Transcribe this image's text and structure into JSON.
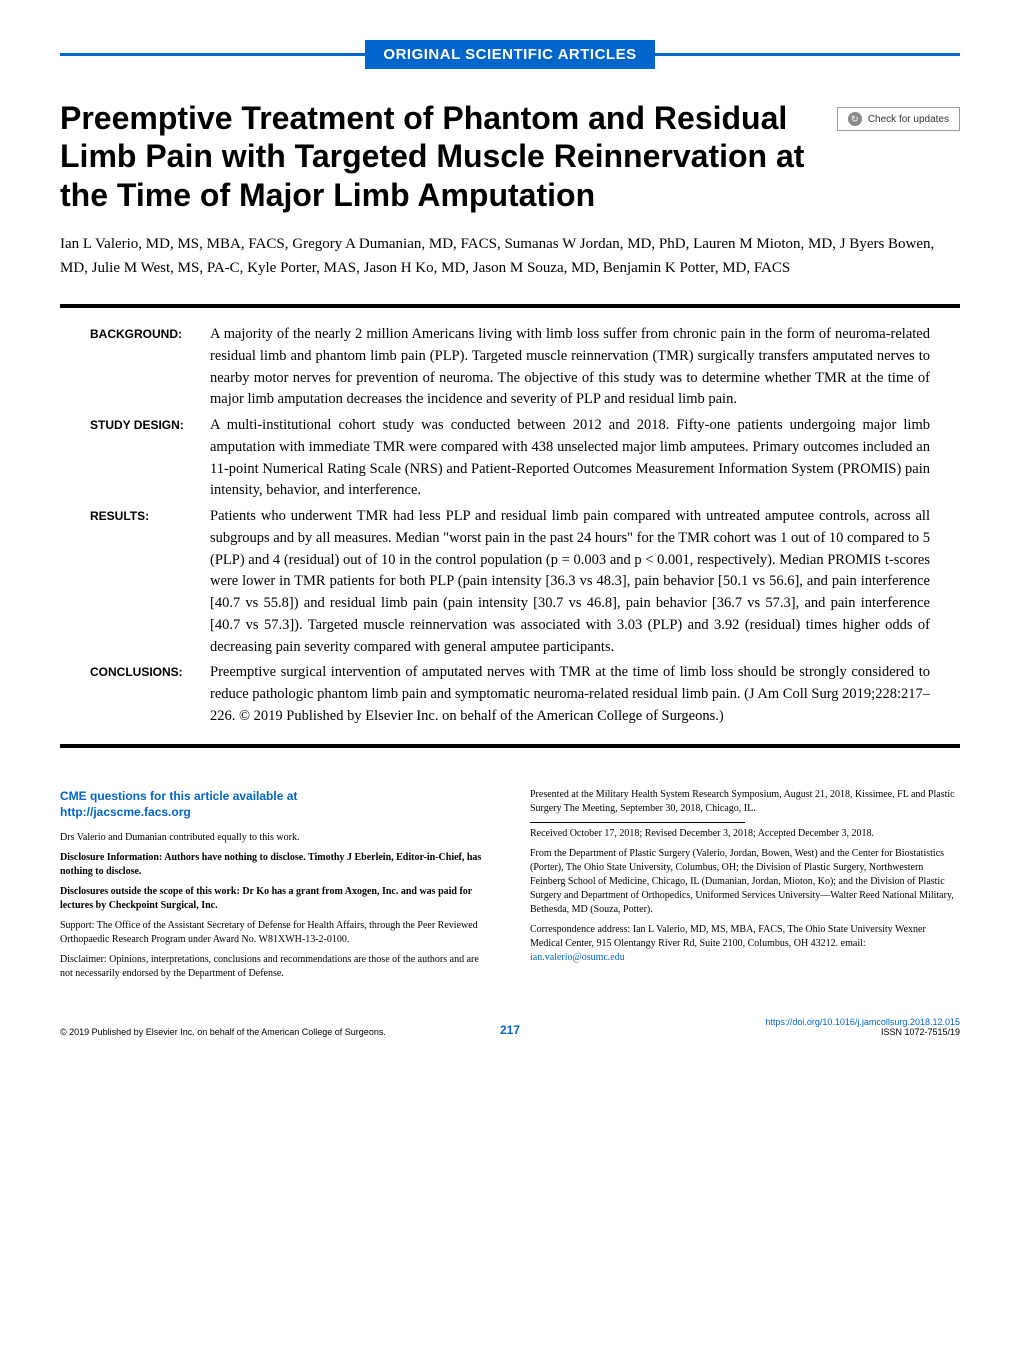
{
  "header": {
    "badge_text": "ORIGINAL SCIENTIFIC ARTICLES",
    "badge_bg": "#0066cc",
    "badge_color": "#ffffff",
    "divider_color": "#0066cc"
  },
  "check_updates": {
    "label": "Check for updates"
  },
  "title": "Preemptive Treatment of Phantom and Residual Limb Pain with Targeted Muscle Reinnervation at the Time of Major Limb Amputation",
  "authors_line": "Ian L Valerio, MD, MS, MBA, FACS, Gregory A Dumanian, MD, FACS, Sumanas W Jordan, MD, PhD, Lauren M Mioton, MD, J Byers Bowen, MD, Julie M West, MS, PA-C, Kyle Porter, MAS, Jason H Ko, MD, Jason M Souza, MD, Benjamin K Potter, MD, FACS",
  "abstract": {
    "sections": [
      {
        "label": "BACKGROUND:",
        "text": "A majority of the nearly 2 million Americans living with limb loss suffer from chronic pain in the form of neuroma-related residual limb and phantom limb pain (PLP). Targeted muscle reinnervation (TMR) surgically transfers amputated nerves to nearby motor nerves for prevention of neuroma. The objective of this study was to determine whether TMR at the time of major limb amputation decreases the incidence and severity of PLP and residual limb pain."
      },
      {
        "label": "STUDY DESIGN:",
        "text": "A multi-institutional cohort study was conducted between 2012 and 2018. Fifty-one patients undergoing major limb amputation with immediate TMR were compared with 438 unselected major limb amputees. Primary outcomes included an 11-point Numerical Rating Scale (NRS) and Patient-Reported Outcomes Measurement Information System (PROMIS) pain intensity, behavior, and interference."
      },
      {
        "label": "RESULTS:",
        "text": "Patients who underwent TMR had less PLP and residual limb pain compared with untreated amputee controls, across all subgroups and by all measures. Median \"worst pain in the past 24 hours\" for the TMR cohort was 1 out of 10 compared to 5 (PLP) and 4 (residual) out of 10 in the control population (p = 0.003 and p < 0.001, respectively). Median PROMIS t-scores were lower in TMR patients for both PLP (pain intensity [36.3 vs 48.3], pain behavior [50.1 vs 56.6], and pain interference [40.7 vs 55.8]) and residual limb pain (pain intensity [30.7 vs 46.8], pain behavior [36.7 vs 57.3], and pain interference [40.7 vs 57.3]). Targeted muscle reinnervation was associated with 3.03 (PLP) and 3.92 (residual) times higher odds of decreasing pain severity compared with general amputee participants."
      },
      {
        "label": "CONCLUSIONS:",
        "text": "Preemptive surgical intervention of amputated nerves with TMR at the time of limb loss should be strongly considered to reduce pathologic phantom limb pain and symptomatic neuroma-related residual limb pain. (J Am Coll Surg 2019;228:217–226. © 2019 Published by Elsevier Inc. on behalf of the American College of Surgeons.)"
      }
    ]
  },
  "cme": {
    "line1": "CME questions for this article available at",
    "line2": "http://jacscme.facs.org"
  },
  "left_notes": [
    {
      "text": "Drs Valerio and Dumanian contributed equally to this work.",
      "bold": false
    },
    {
      "text": "Disclosure Information: Authors have nothing to disclose. Timothy J Eberlein, Editor-in-Chief, has nothing to disclose.",
      "bold": true
    },
    {
      "text": "Disclosures outside the scope of this work: Dr Ko has a grant from Axogen, Inc. and was paid for lectures by Checkpoint Surgical, Inc.",
      "bold": true
    },
    {
      "text": "Support: The Office of the Assistant Secretary of Defense for Health Affairs, through the Peer Reviewed Orthopaedic Research Program under Award No. W81XWH-13-2-0100.",
      "bold": false
    },
    {
      "text": "Disclaimer: Opinions, interpretations, conclusions and recommendations are those of the authors and are not necessarily endorsed by the Department of Defense.",
      "bold": false
    }
  ],
  "right_notes": {
    "presented": "Presented at the Military Health System Research Symposium, August 21, 2018, Kissimee, FL and Plastic Surgery The Meeting, September 30, 2018, Chicago, IL.",
    "received": "Received October 17, 2018; Revised December 3, 2018; Accepted December 3, 2018.",
    "affiliations": "From the Department of Plastic Surgery (Valerio, Jordan, Bowen, West) and the Center for Biostatistics (Porter), The Ohio State University, Columbus, OH; the Division of Plastic Surgery, Northwestern Feinberg School of Medicine, Chicago, IL (Dumanian, Jordan, Mioton, Ko); and the Division of Plastic Surgery and Department of Orthopedics, Uniformed Services University—Walter Reed National Military, Bethesda, MD (Souza, Potter).",
    "correspondence": "Correspondence address: Ian L Valerio, MD, MS, MBA, FACS, The Ohio State University Wexner Medical Center, 915 Olentangy River Rd, Suite 2100, Columbus, OH 43212. email: ",
    "email": "ian.valerio@osumc.edu"
  },
  "footer": {
    "copyright": "© 2019 Published by Elsevier Inc. on behalf of the American College of Surgeons.",
    "page": "217",
    "doi": "https://doi.org/10.1016/j.jamcollsurg.2018.12.015",
    "issn": "ISSN 1072-7515/19"
  },
  "styling": {
    "body_width": 1020,
    "body_padding": "40px 60px",
    "title_fontsize": 32,
    "title_color": "#000000",
    "abstract_fontsize": 14.5,
    "abstract_label_fontsize": 12,
    "footnote_fontsize": 10,
    "link_color": "#0066cc",
    "divider_thickness": 4
  }
}
